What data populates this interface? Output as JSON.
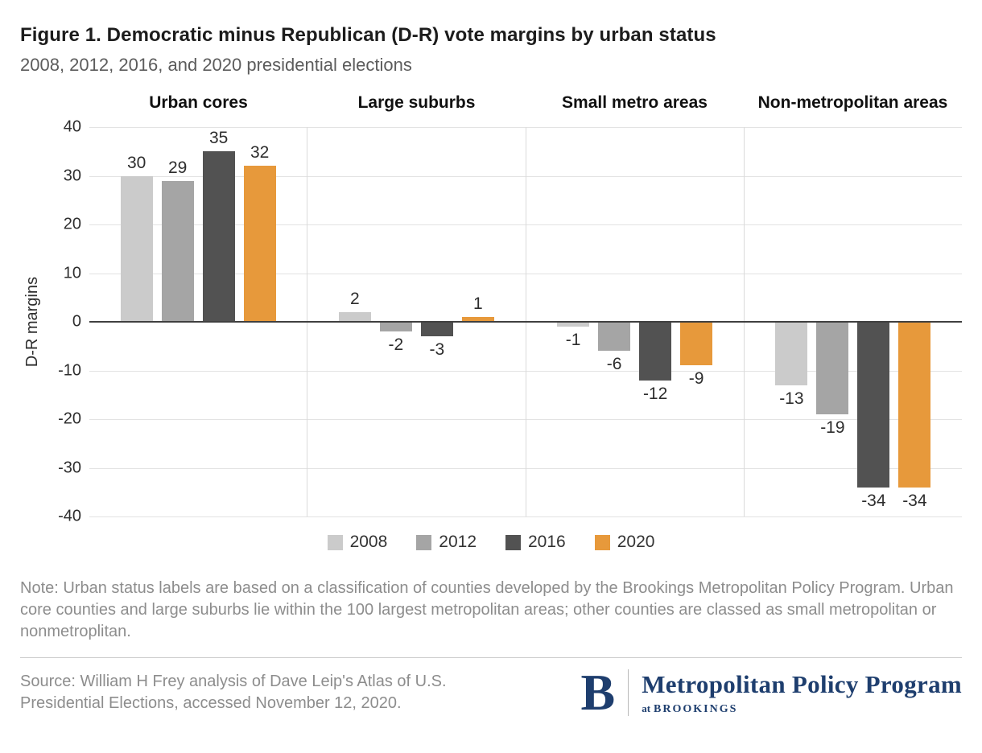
{
  "title": "Figure 1. Democratic minus Republican (D-R) vote margins by urban status",
  "subtitle": "2008, 2012, 2016, and 2020 presidential elections",
  "chart_data": {
    "type": "bar",
    "categories": [
      "Urban cores",
      "Large suburbs",
      "Small metro areas",
      "Non-metropolitan areas"
    ],
    "series": [
      {
        "name": "2008",
        "color": "#cbcbcb",
        "values": [
          30,
          2,
          -1,
          -13
        ]
      },
      {
        "name": "2012",
        "color": "#a5a5a5",
        "values": [
          29,
          -2,
          -6,
          -19
        ]
      },
      {
        "name": "2016",
        "color": "#525252",
        "values": [
          35,
          -3,
          -12,
          -34
        ]
      },
      {
        "name": "2020",
        "color": "#e7993b",
        "values": [
          32,
          1,
          -9,
          -34
        ]
      }
    ],
    "xlabel": "",
    "ylabel": "D-R margins",
    "ylim": [
      -40,
      40
    ],
    "yticks": [
      40,
      30,
      20,
      10,
      0,
      -10,
      -20,
      -30,
      -40
    ],
    "grid": true,
    "legend_position": "bottom"
  },
  "note": "Note: Urban status labels are based on a classification of counties developed by the Brookings Metropolitan Policy Program. Urban core counties and large suburbs lie within the 100 largest metropolitan areas; other counties are classed as small metropolitan or nonmetroplitan.",
  "source": "Source: William H Frey analysis of Dave Leip's Atlas of U.S. Presidential Elections, accessed November 12, 2020.",
  "logo": {
    "initial": "B",
    "program": "Metropolitan Policy Program",
    "at": "at",
    "org": "BROOKINGS",
    "navy": "#1e3e6e"
  }
}
